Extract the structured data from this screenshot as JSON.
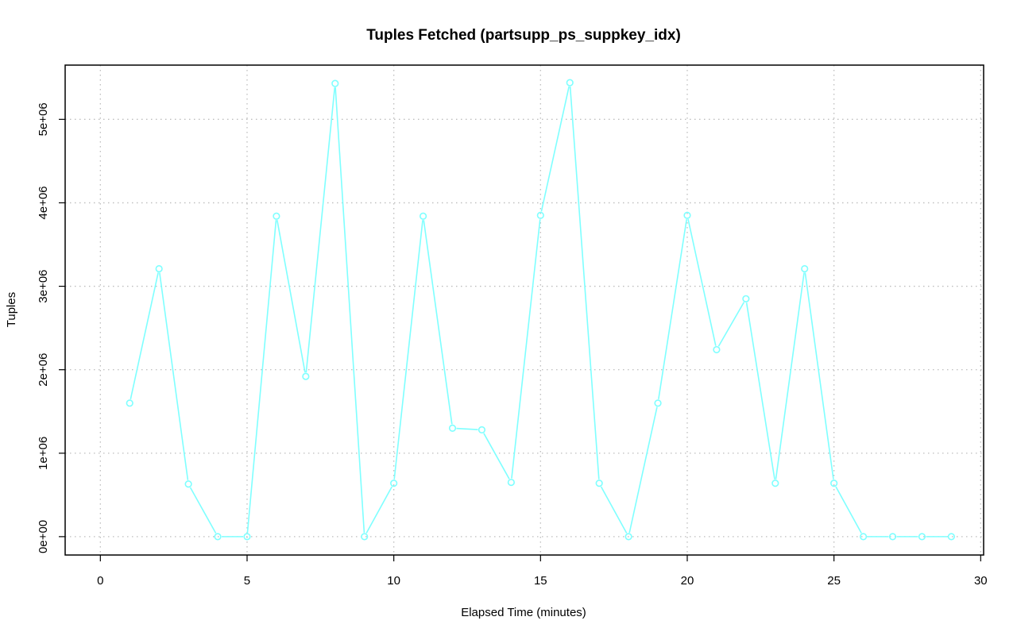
{
  "chart_data": {
    "type": "line",
    "title": "Tuples Fetched (partsupp_ps_suppkey_idx)",
    "xlabel": "Elapsed Time (minutes)",
    "ylabel": "Tuples",
    "xlim": [
      -1.2,
      30.1
    ],
    "ylim": [
      -220000,
      5650000
    ],
    "x_ticks": [
      0,
      5,
      10,
      15,
      20,
      25,
      30
    ],
    "x_tick_labels": [
      "0",
      "5",
      "10",
      "15",
      "20",
      "25",
      "30"
    ],
    "y_ticks": [
      0,
      1000000,
      2000000,
      3000000,
      4000000,
      5000000
    ],
    "y_tick_labels": [
      "0e+00",
      "1e+06",
      "2e+06",
      "3e+06",
      "4e+06",
      "5e+06"
    ],
    "grid": true,
    "series": [
      {
        "color": "#7fffff",
        "marker": "open-circle",
        "x": [
          1,
          2,
          3,
          4,
          5,
          6,
          7,
          8,
          9,
          10,
          11,
          12,
          13,
          14,
          15,
          16,
          17,
          18,
          19,
          20,
          21,
          22,
          23,
          24,
          25,
          26,
          27,
          28,
          29
        ],
        "values": [
          1600000,
          3210000,
          630000,
          0,
          0,
          3840000,
          1920000,
          5430000,
          0,
          640000,
          3840000,
          1300000,
          1280000,
          650000,
          3850000,
          5440000,
          640000,
          0,
          1600000,
          3850000,
          2240000,
          2850000,
          640000,
          3210000,
          640000,
          0,
          0,
          0,
          0
        ]
      }
    ]
  }
}
